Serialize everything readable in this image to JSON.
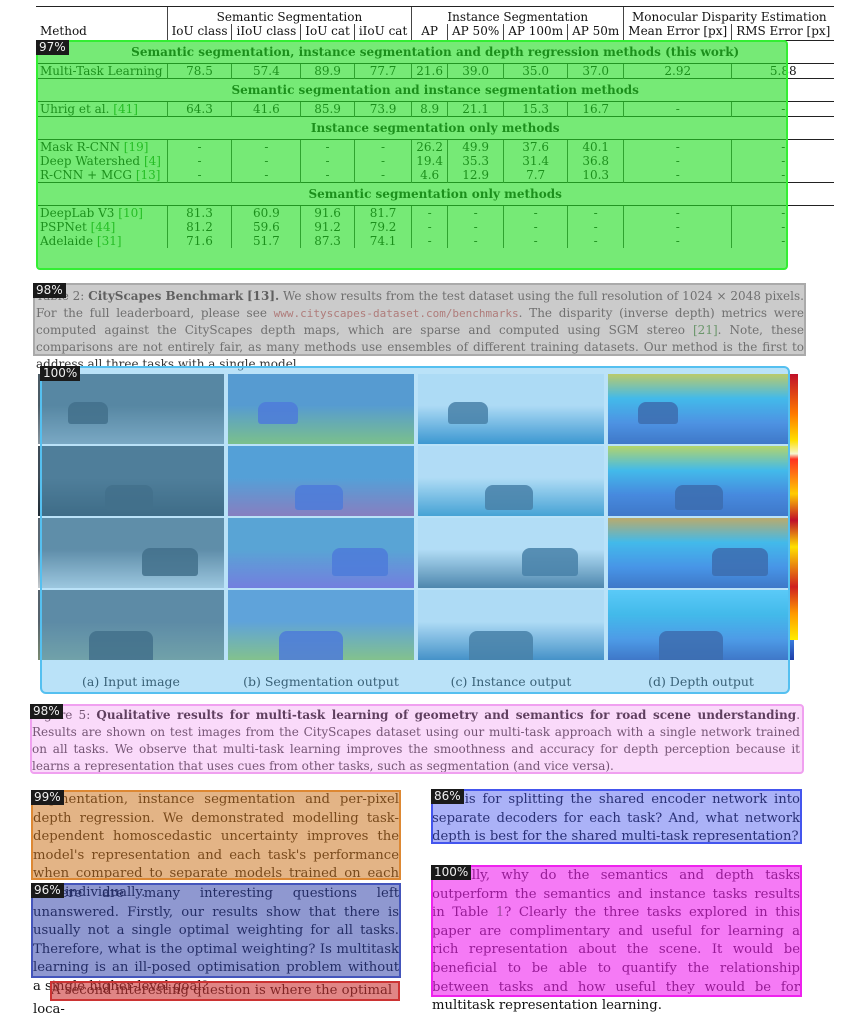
{
  "table": {
    "groups": [
      "Semantic Segmentation",
      "Instance Segmentation",
      "Monocular Disparity Estimation"
    ],
    "columns": [
      "Method",
      "IoU class",
      "iIoU class",
      "IoU cat",
      "iIoU cat",
      "AP",
      "AP 50%",
      "AP 100m",
      "AP 50m",
      "Mean Error [px]",
      "RMS Error [px]"
    ],
    "sections": [
      {
        "title": "Semantic segmentation, instance segmentation and depth regression methods (this work)",
        "rows": [
          {
            "method": "Multi-Task Learning",
            "cite": "",
            "values": [
              "78.5",
              "57.4",
              "89.9",
              "77.7",
              "21.6",
              "39.0",
              "35.0",
              "37.0",
              "2.92",
              "5.88"
            ]
          }
        ]
      },
      {
        "title": "Semantic segmentation and instance segmentation methods",
        "rows": [
          {
            "method": "Uhrig et al.",
            "cite": "[41]",
            "values": [
              "64.3",
              "41.6",
              "85.9",
              "73.9",
              "8.9",
              "21.1",
              "15.3",
              "16.7",
              "-",
              "-"
            ]
          }
        ]
      },
      {
        "title": "Instance segmentation only methods",
        "rows": [
          {
            "method": "Mask R-CNN",
            "cite": "[19]",
            "values": [
              "-",
              "-",
              "-",
              "-",
              "26.2",
              "49.9",
              "37.6",
              "40.1",
              "-",
              "-"
            ]
          },
          {
            "method": "Deep Watershed",
            "cite": "[4]",
            "values": [
              "-",
              "-",
              "-",
              "-",
              "19.4",
              "35.3",
              "31.4",
              "36.8",
              "-",
              "-"
            ]
          },
          {
            "method": "R-CNN + MCG",
            "cite": "[13]",
            "values": [
              "-",
              "-",
              "-",
              "-",
              "4.6",
              "12.9",
              "7.7",
              "10.3",
              "-",
              "-"
            ]
          }
        ]
      },
      {
        "title": "Semantic segmentation only methods",
        "rows": [
          {
            "method": "DeepLab V3",
            "cite": "[10]",
            "values": [
              "81.3",
              "60.9",
              "91.6",
              "81.7",
              "-",
              "-",
              "-",
              "-",
              "-",
              "-"
            ]
          },
          {
            "method": "PSPNet",
            "cite": "[44]",
            "values": [
              "81.2",
              "59.6",
              "91.2",
              "79.2",
              "-",
              "-",
              "-",
              "-",
              "-",
              "-"
            ]
          },
          {
            "method": "Adelaide",
            "cite": "[31]",
            "values": [
              "71.6",
              "51.7",
              "87.3",
              "74.1",
              "-",
              "-",
              "-",
              "-",
              "-",
              "-"
            ]
          }
        ]
      }
    ]
  },
  "table_caption": {
    "label": "Table 2:",
    "title": "CityScapes Benchmark",
    "title_cite": "[13].",
    "text1": "We show results from the test dataset using the full resolution of 1024 × 2048 pixels. For the full leaderboard, please see",
    "url": "www.cityscapes-dataset.com/benchmarks",
    "text2": ". The disparity (inverse depth) metrics were computed against the CityScapes depth maps, which are sparse and computed using SGM stereo",
    "text2_cite": "[21]",
    "text3": ". Note, these comparisons are not entirely fair, as many methods use ensembles of different training datasets. Our method is the first to address all three tasks with a single model."
  },
  "figure": {
    "sublabels": [
      "(a) Input image",
      "(b) Segmentation output",
      "(c) Instance output",
      "(d) Depth output"
    ]
  },
  "figure_caption": {
    "label": "Figure 5:",
    "title": "Qualitative results for multi-task learning of geometry and semantics for road scene understanding",
    "text": ". Results are shown on test images from the CityScapes dataset using our multi-task approach with a single network trained on all tasks. We observe that multi-task learning improves the smoothness and accuracy for depth perception because it learns a representation that uses cues from other tasks, such as segmentation (and vice versa)."
  },
  "body": {
    "left_p1": "segmentation, instance segmentation and per-pixel depth regression. We demonstrated modelling task-dependent homoscedastic uncertainty improves the model's representation and each task's performance when compared to separate models trained on each task individually.",
    "left_p2": "There are many interesting questions left unanswered. Firstly, our results show that there is usually not a single optimal weighting for all tasks. Therefore, what is the optimal weighting? Is multitask learning is an ill-posed optimisation problem without a single higher-level goal?",
    "left_p3": "A second interesting question is where the optimal loca-",
    "right_p1": "tion is for splitting the shared encoder network into separate decoders for each task? And, what network depth is best for the shared multi-task representation?",
    "right_p2": "Finally, why do the semantics and depth tasks outperform the semantics and instance tasks results in Table",
    "right_p2_cite": "1",
    "right_p2_end": "? Clearly the three tasks explored in this paper are complimentary and useful for learning a rich representation about the scene. It would be beneficial to be able to quantify the relationship between tasks and how useful they would be for multitask representation learning."
  },
  "overlays": [
    {
      "name": "table-overlay",
      "badge": "97%",
      "color": "#22dd22"
    },
    {
      "name": "table-caption-overlay",
      "badge": "98%",
      "color": "#999999"
    },
    {
      "name": "figure-overlay",
      "badge": "100%",
      "color": "#44bbee"
    },
    {
      "name": "figure-caption-overlay",
      "badge": "98%",
      "color": "#ee88ee"
    },
    {
      "name": "left-p1-overlay",
      "badge": "99%",
      "color": "#cc7722"
    },
    {
      "name": "left-p2-overlay",
      "badge": "96%",
      "color": "#3344aa"
    },
    {
      "name": "left-p3-overlay",
      "badge": "",
      "color": "#cc3333"
    },
    {
      "name": "right-p1-overlay",
      "badge": "86%",
      "color": "#4455ee"
    },
    {
      "name": "right-p2-overlay",
      "badge": "100%",
      "color": "#ee22ee"
    }
  ]
}
